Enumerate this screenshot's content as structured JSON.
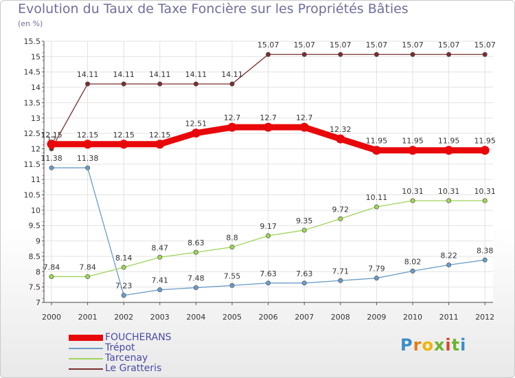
{
  "title": "Evolution du Taux de Taxe Foncière sur les Propriétés Bâties",
  "unit_label": "(en %)",
  "brand": {
    "letters": [
      "P",
      "r",
      "o",
      "x",
      "i",
      "t",
      "i"
    ],
    "colors": [
      "#3a8ec8",
      "#e07f12",
      "#f0b400",
      "#6ab42e",
      "#d94232",
      "#6ab42e",
      "#3a8ec8"
    ]
  },
  "chart_data": {
    "type": "line",
    "title": "Evolution du Taux de Taxe Foncière sur les Propriétés Bâties",
    "ylabel": "(en %)",
    "xlabel": "",
    "categories": [
      "2000",
      "2001",
      "2002",
      "2003",
      "2004",
      "2005",
      "2006",
      "2007",
      "2008",
      "2009",
      "2010",
      "2011",
      "2012"
    ],
    "ylim": [
      7,
      15.5
    ],
    "yticks": [
      "7",
      "7.5",
      "8",
      "8.5",
      "9",
      "9.5",
      "10",
      "10.5",
      "11",
      "11.5",
      "12",
      "12.5",
      "13",
      "13.5",
      "14",
      "14.5",
      "15",
      "15.5"
    ],
    "grid": true,
    "legend_position": "bottom-left",
    "series": [
      {
        "name": "FOUCHERANS",
        "color": "#e8080a",
        "emphasis": true,
        "values": [
          12.15,
          12.15,
          12.15,
          12.15,
          12.51,
          12.7,
          12.7,
          12.7,
          12.32,
          11.95,
          11.95,
          11.95,
          11.95
        ],
        "labels": [
          "12.15",
          "12.15",
          "12.15",
          "12.15",
          "12.51",
          "12.7",
          "12.7",
          "12.7",
          "12.32",
          "11.95",
          "11.95",
          "11.95",
          "11.95"
        ]
      },
      {
        "name": "Trépot",
        "color": "#6a9cc8",
        "emphasis": false,
        "values": [
          11.38,
          11.38,
          7.23,
          7.41,
          7.48,
          7.55,
          7.63,
          7.63,
          7.71,
          7.79,
          8.02,
          8.22,
          8.38
        ],
        "labels": [
          "11.38",
          "11.38",
          "7.23",
          "7.41",
          "7.48",
          "7.55",
          "7.63",
          "7.63",
          "7.71",
          "7.79",
          "8.02",
          "8.22",
          "8.38"
        ]
      },
      {
        "name": "Tarcenay",
        "color": "#9ed457",
        "emphasis": false,
        "values": [
          7.84,
          7.84,
          8.14,
          8.47,
          8.63,
          8.8,
          9.17,
          9.35,
          9.72,
          10.11,
          10.31,
          10.31,
          10.31
        ],
        "labels": [
          "7.84",
          "7.84",
          "8.14",
          "8.47",
          "8.63",
          "8.8",
          "9.17",
          "9.35",
          "9.72",
          "10.11",
          "10.31",
          "10.31",
          "10.31"
        ]
      },
      {
        "name": "Le Gratteris",
        "color": "#7a2e2e",
        "emphasis": false,
        "values": [
          12.0,
          14.11,
          14.11,
          14.11,
          14.11,
          14.11,
          15.07,
          15.07,
          15.07,
          15.07,
          15.07,
          15.07,
          15.07
        ],
        "labels": [
          "12",
          "14.11",
          "14.11",
          "14.11",
          "14.11",
          "14.11",
          "15.07",
          "15.07",
          "15.07",
          "15.07",
          "15.07",
          "15.07",
          "15.07"
        ]
      }
    ]
  }
}
